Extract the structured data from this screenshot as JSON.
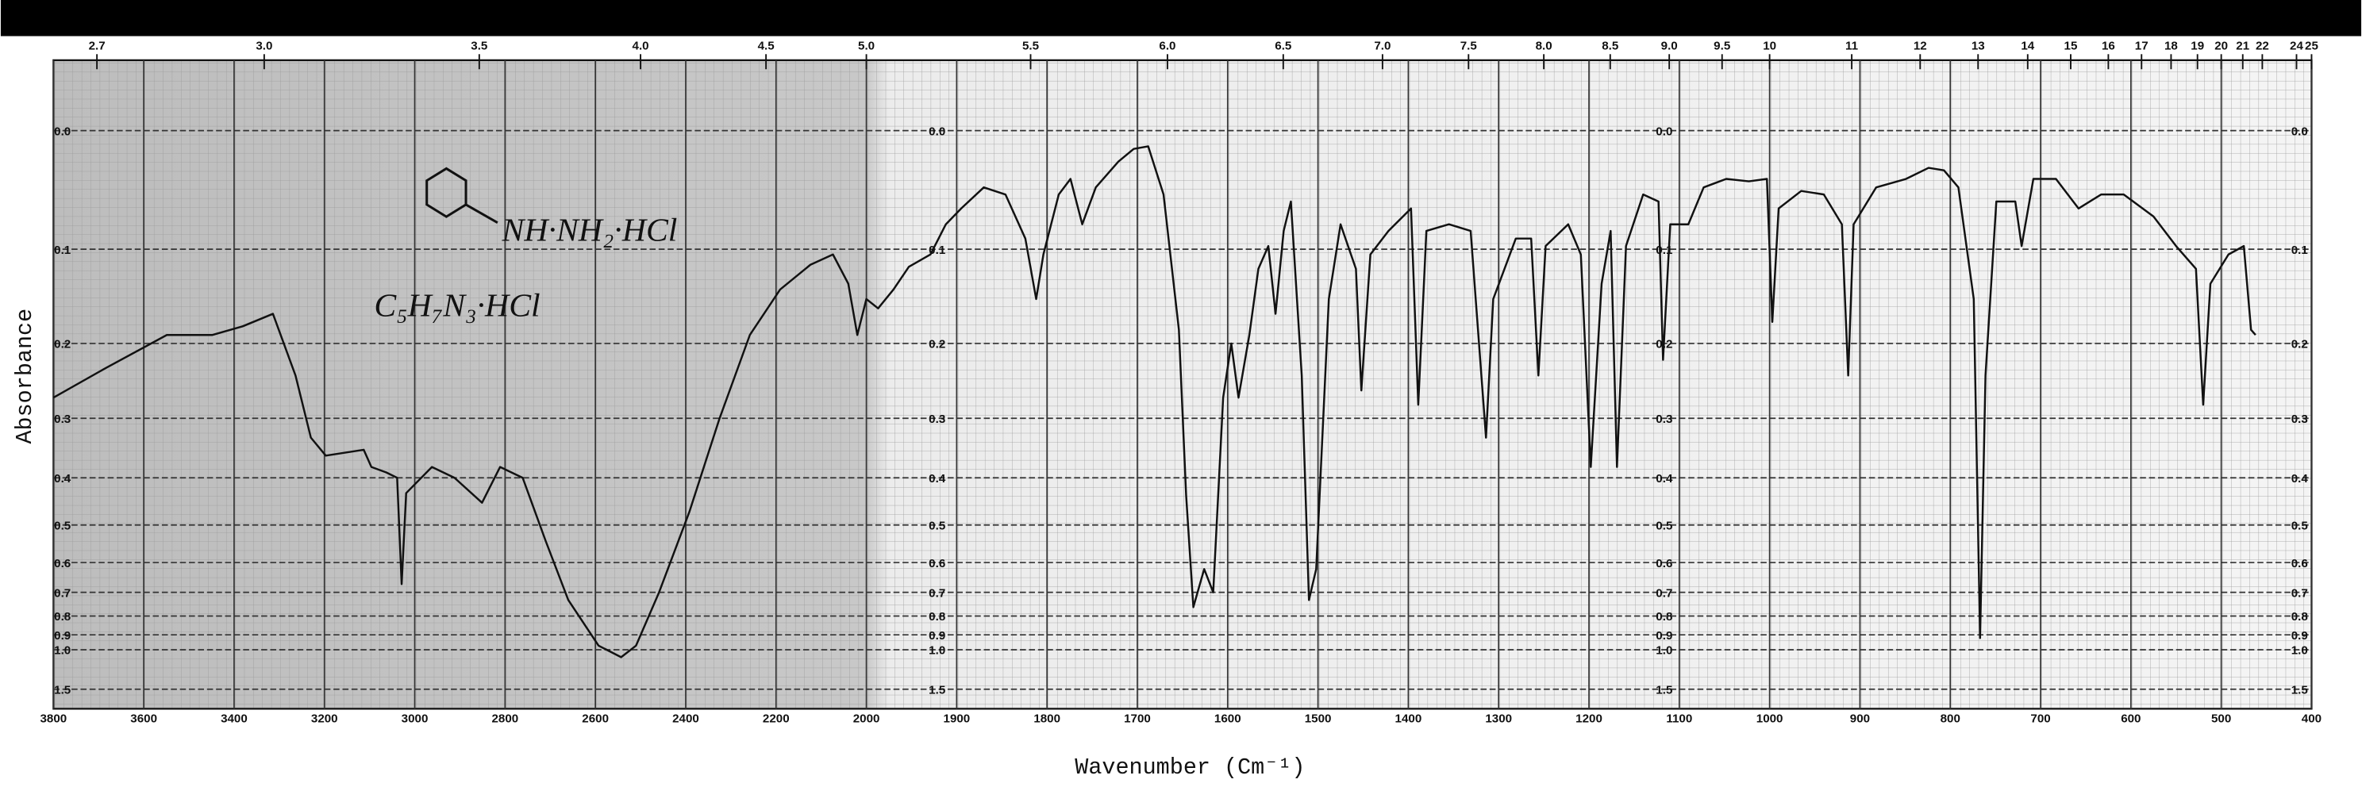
{
  "chart_data": {
    "type": "line",
    "xlabel": "Wavenumber (Cm⁻¹)",
    "ylabel": "Absorbance",
    "annotations": [
      "NH·NH₂·HCl",
      "C₅H₇N₃·HCl"
    ],
    "color": "#111111",
    "grid": true,
    "yscale": "absorbance",
    "x_break": 2000,
    "x_break_compression": 2,
    "xlim": [
      3800,
      400
    ],
    "ylim": [
      -0.05,
      1.5
    ],
    "xticks": [
      3800,
      3600,
      3400,
      3200,
      3000,
      2800,
      2600,
      2400,
      2200,
      2000,
      1900,
      1800,
      1700,
      1600,
      1500,
      1400,
      1300,
      1200,
      1100,
      1000,
      900,
      800,
      700,
      600,
      500,
      400
    ],
    "yticks": [
      {
        "value": 0,
        "label": "0.0"
      },
      {
        "value": 0.1,
        "label": "0.1"
      },
      {
        "value": 0.2,
        "label": "0.2"
      },
      {
        "value": 0.3,
        "label": "0.3"
      },
      {
        "value": 0.4,
        "label": "0.4"
      },
      {
        "value": 0.5,
        "label": "0.5"
      },
      {
        "value": 0.6,
        "label": "0.6"
      },
      {
        "value": 0.7,
        "label": "0.7"
      },
      {
        "value": 0.8,
        "label": "0.8"
      },
      {
        "value": 0.9,
        "label": "0.9"
      },
      {
        "value": 1,
        "label": "1.0"
      },
      {
        "value": 1.5,
        "label": "1.5"
      }
    ],
    "x2ticks": [
      2.7,
      {
        "value": 3,
        "label": "3.0"
      },
      3.5,
      {
        "value": 4,
        "label": "4.0"
      },
      4.5,
      {
        "value": 5,
        "label": "5.0"
      },
      5.5,
      {
        "value": 6,
        "label": "6.0"
      },
      6.5,
      {
        "value": 7,
        "label": "7.0"
      },
      7.5,
      {
        "value": 8,
        "label": "8.0"
      },
      8.5,
      {
        "value": 9,
        "label": "9.0"
      },
      9.5,
      10,
      11,
      12,
      13,
      14,
      15,
      16,
      17,
      18,
      19,
      20,
      21,
      22,
      24,
      25
    ],
    "x": [
      3800,
      3683,
      3549,
      3448,
      3381,
      3314,
      3264,
      3230,
      3197,
      3113,
      3096,
      3063,
      3039,
      3029,
      3019,
      2962,
      2912,
      2851,
      2811,
      2761,
      2710,
      2660,
      2593,
      2543,
      2510,
      2459,
      2392,
      2325,
      2258,
      2191,
      2124,
      2074,
      2040,
      2020,
      2000,
      1987,
      1970,
      1953,
      1929,
      1912,
      1895,
      1870,
      1846,
      1824,
      1812,
      1804,
      1787,
      1774,
      1761,
      1746,
      1721,
      1704,
      1688,
      1671,
      1654,
      1646,
      1638,
      1626,
      1616,
      1605,
      1596,
      1588,
      1576,
      1566,
      1555,
      1547,
      1538,
      1530,
      1518,
      1510,
      1502,
      1488,
      1475,
      1458,
      1452,
      1442,
      1422,
      1397,
      1389,
      1380,
      1355,
      1331,
      1314,
      1306,
      1281,
      1264,
      1256,
      1248,
      1223,
      1209,
      1198,
      1186,
      1176,
      1169,
      1159,
      1140,
      1123,
      1118,
      1110,
      1090,
      1073,
      1048,
      1023,
      1003,
      997,
      990,
      965,
      940,
      920,
      913,
      907,
      882,
      849,
      824,
      807,
      791,
      774,
      767,
      761,
      749,
      728,
      721,
      708,
      683,
      658,
      633,
      608,
      575,
      550,
      528,
      520,
      512,
      492,
      475,
      467,
      462
    ],
    "values": [
      0.27,
      0.23,
      0.19,
      0.19,
      0.18,
      0.166,
      0.24,
      0.33,
      0.36,
      0.35,
      0.38,
      0.39,
      0.4,
      0.67,
      0.43,
      0.38,
      0.4,
      0.45,
      0.38,
      0.4,
      0.54,
      0.73,
      0.97,
      1.06,
      0.97,
      0.7,
      0.47,
      0.3,
      0.19,
      0.14,
      0.115,
      0.105,
      0.134,
      0.19,
      0.15,
      0.16,
      0.14,
      0.117,
      0.105,
      0.077,
      0.063,
      0.045,
      0.051,
      0.09,
      0.15,
      0.105,
      0.051,
      0.038,
      0.077,
      0.045,
      0.024,
      0.014,
      0.012,
      0.051,
      0.184,
      0.434,
      0.76,
      0.62,
      0.7,
      0.27,
      0.2,
      0.27,
      0.19,
      0.119,
      0.097,
      0.166,
      0.083,
      0.057,
      0.24,
      0.73,
      0.62,
      0.15,
      0.077,
      0.119,
      0.26,
      0.105,
      0.083,
      0.063,
      0.28,
      0.083,
      0.077,
      0.083,
      0.33,
      0.15,
      0.09,
      0.09,
      0.24,
      0.097,
      0.077,
      0.105,
      0.38,
      0.134,
      0.083,
      0.38,
      0.097,
      0.051,
      0.057,
      0.22,
      0.077,
      0.077,
      0.045,
      0.038,
      0.04,
      0.038,
      0.175,
      0.063,
      0.048,
      0.051,
      0.077,
      0.24,
      0.077,
      0.045,
      0.038,
      0.029,
      0.031,
      0.045,
      0.15,
      0.92,
      0.24,
      0.057,
      0.057,
      0.097,
      0.038,
      0.038,
      0.063,
      0.051,
      0.051,
      0.07,
      0.097,
      0.119,
      0.28,
      0.134,
      0.105,
      0.097,
      0.184,
      0.19
    ]
  }
}
